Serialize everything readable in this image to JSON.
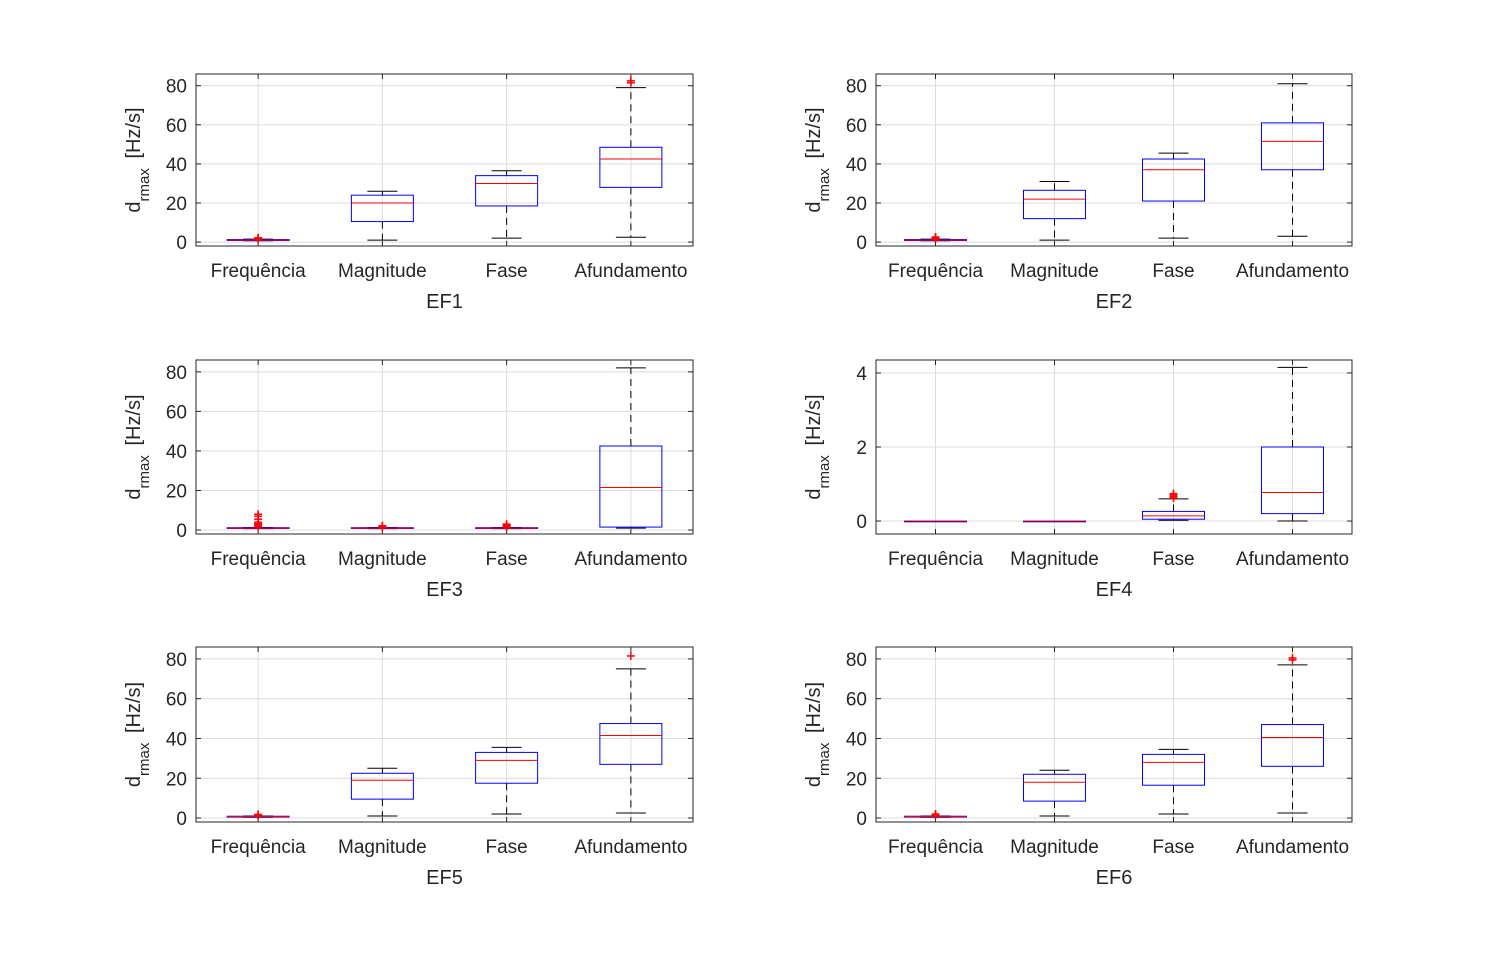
{
  "chart_data": [
    {
      "type": "box",
      "xlabel": "EF1",
      "ylabel_main": "d",
      "ylabel_sub": "rmax",
      "ylabel_unit": "[Hz/s]",
      "categories": [
        "Frequência",
        "Magnitude",
        "Fase",
        "Afundamento"
      ],
      "ylim": [
        -2,
        86
      ],
      "yticks": [
        "0",
        "20",
        "40",
        "60",
        "80"
      ],
      "ytick_values": [
        0,
        20,
        40,
        60,
        80
      ],
      "boxes": [
        {
          "whisker_low": 0.7,
          "q1": 0.8,
          "median": 1.0,
          "q3": 1.3,
          "whisker_high": 1.5,
          "outliers": [
            1.6,
            1.8,
            2.0,
            2.2
          ]
        },
        {
          "whisker_low": 1.0,
          "q1": 10.5,
          "median": 20.0,
          "q3": 24.0,
          "whisker_high": 26.0,
          "outliers": []
        },
        {
          "whisker_low": 2.0,
          "q1": 18.5,
          "median": 30.0,
          "q3": 34.0,
          "whisker_high": 36.5,
          "outliers": []
        },
        {
          "whisker_low": 2.5,
          "q1": 28.0,
          "median": 42.5,
          "q3": 48.5,
          "whisker_high": 79.0,
          "outliers": [
            81.5,
            82.5
          ]
        }
      ]
    },
    {
      "type": "box",
      "xlabel": "EF2",
      "ylabel_main": "d",
      "ylabel_sub": "rmax",
      "ylabel_unit": "[Hz/s]",
      "categories": [
        "Frequência",
        "Magnitude",
        "Fase",
        "Afundamento"
      ],
      "ylim": [
        -2,
        86
      ],
      "yticks": [
        "0",
        "20",
        "40",
        "60",
        "80"
      ],
      "ytick_values": [
        0,
        20,
        40,
        60,
        80
      ],
      "boxes": [
        {
          "whisker_low": 0.7,
          "q1": 0.8,
          "median": 1.0,
          "q3": 1.3,
          "whisker_high": 1.5,
          "outliers": [
            1.7,
            2.0,
            2.3,
            2.6
          ]
        },
        {
          "whisker_low": 1.0,
          "q1": 12.0,
          "median": 22.0,
          "q3": 26.5,
          "whisker_high": 31.0,
          "outliers": []
        },
        {
          "whisker_low": 2.0,
          "q1": 21.0,
          "median": 37.0,
          "q3": 42.5,
          "whisker_high": 45.5,
          "outliers": []
        },
        {
          "whisker_low": 3.0,
          "q1": 37.0,
          "median": 51.5,
          "q3": 61.0,
          "whisker_high": 81.0,
          "outliers": []
        }
      ]
    },
    {
      "type": "box",
      "xlabel": "EF3",
      "ylabel_main": "d",
      "ylabel_sub": "rmax",
      "ylabel_unit": "[Hz/s]",
      "categories": [
        "Frequência",
        "Magnitude",
        "Fase",
        "Afundamento"
      ],
      "ylim": [
        -2,
        86
      ],
      "yticks": [
        "0",
        "20",
        "40",
        "60",
        "80"
      ],
      "ytick_values": [
        0,
        20,
        40,
        60,
        80
      ],
      "boxes": [
        {
          "whisker_low": 0.7,
          "q1": 0.8,
          "median": 1.0,
          "q3": 1.2,
          "whisker_high": 1.3,
          "outliers": [
            1.8,
            2.5,
            3.2,
            4.0,
            5.5,
            7.0,
            8.0
          ]
        },
        {
          "whisker_low": 0.7,
          "q1": 0.8,
          "median": 1.0,
          "q3": 1.2,
          "whisker_high": 1.3,
          "outliers": [
            1.6,
            1.9,
            2.2
          ]
        },
        {
          "whisker_low": 0.7,
          "q1": 0.8,
          "median": 1.0,
          "q3": 1.2,
          "whisker_high": 1.3,
          "outliers": [
            1.6,
            2.0,
            2.5,
            3.0
          ]
        },
        {
          "whisker_low": 1.0,
          "q1": 1.5,
          "median": 21.5,
          "q3": 42.5,
          "whisker_high": 82.0,
          "outliers": []
        }
      ]
    },
    {
      "type": "box",
      "xlabel": "EF4",
      "ylabel_main": "d",
      "ylabel_sub": "rmax",
      "ylabel_unit": "[Hz/s]",
      "categories": [
        "Frequência",
        "Magnitude",
        "Fase",
        "Afundamento"
      ],
      "ylim": [
        -0.35,
        4.35
      ],
      "yticks": [
        "0",
        "2",
        "4"
      ],
      "ytick_values": [
        0,
        2,
        4
      ],
      "boxes": [
        {
          "whisker_low": 0.0,
          "q1": 0.0,
          "median": 0.0,
          "q3": 0.0,
          "whisker_high": 0.0,
          "outliers": []
        },
        {
          "whisker_low": 0.0,
          "q1": 0.0,
          "median": 0.0,
          "q3": 0.0,
          "whisker_high": 0.0,
          "outliers": []
        },
        {
          "whisker_low": 0.02,
          "q1": 0.05,
          "median": 0.14,
          "q3": 0.26,
          "whisker_high": 0.6,
          "outliers": [
            0.62,
            0.66,
            0.7,
            0.74
          ]
        },
        {
          "whisker_low": 0.0,
          "q1": 0.2,
          "median": 0.77,
          "q3": 2.0,
          "whisker_high": 4.15,
          "outliers": []
        }
      ]
    },
    {
      "type": "box",
      "xlabel": "EF5",
      "ylabel_main": "d",
      "ylabel_sub": "rmax",
      "ylabel_unit": "[Hz/s]",
      "categories": [
        "Frequência",
        "Magnitude",
        "Fase",
        "Afundamento"
      ],
      "ylim": [
        -2,
        86
      ],
      "yticks": [
        "0",
        "20",
        "40",
        "60",
        "80"
      ],
      "ytick_values": [
        0,
        20,
        40,
        60,
        80
      ],
      "boxes": [
        {
          "whisker_low": 0.4,
          "q1": 0.5,
          "median": 0.7,
          "q3": 0.9,
          "whisker_high": 1.0,
          "outliers": [
            1.2,
            1.5,
            1.8
          ]
        },
        {
          "whisker_low": 1.0,
          "q1": 9.5,
          "median": 19.0,
          "q3": 22.5,
          "whisker_high": 25.0,
          "outliers": []
        },
        {
          "whisker_low": 2.0,
          "q1": 17.5,
          "median": 29.0,
          "q3": 33.0,
          "whisker_high": 35.5,
          "outliers": []
        },
        {
          "whisker_low": 2.5,
          "q1": 27.0,
          "median": 41.5,
          "q3": 47.5,
          "whisker_high": 75.0,
          "outliers": [
            81.5
          ]
        }
      ]
    },
    {
      "type": "box",
      "xlabel": "EF6",
      "ylabel_main": "d",
      "ylabel_sub": "rmax",
      "ylabel_unit": "[Hz/s]",
      "categories": [
        "Frequência",
        "Magnitude",
        "Fase",
        "Afundamento"
      ],
      "ylim": [
        -2,
        86
      ],
      "yticks": [
        "0",
        "20",
        "40",
        "60",
        "80"
      ],
      "ytick_values": [
        0,
        20,
        40,
        60,
        80
      ],
      "boxes": [
        {
          "whisker_low": 0.4,
          "q1": 0.5,
          "median": 0.7,
          "q3": 0.9,
          "whisker_high": 1.0,
          "outliers": [
            1.3,
            1.6,
            2.0
          ]
        },
        {
          "whisker_low": 1.0,
          "q1": 8.5,
          "median": 18.0,
          "q3": 22.0,
          "whisker_high": 24.0,
          "outliers": []
        },
        {
          "whisker_low": 2.0,
          "q1": 16.5,
          "median": 28.0,
          "q3": 32.0,
          "whisker_high": 34.5,
          "outliers": []
        },
        {
          "whisker_low": 2.5,
          "q1": 26.0,
          "median": 40.5,
          "q3": 47.0,
          "whisker_high": 77.0,
          "outliers": [
            79.5,
            80.5
          ]
        }
      ]
    }
  ]
}
